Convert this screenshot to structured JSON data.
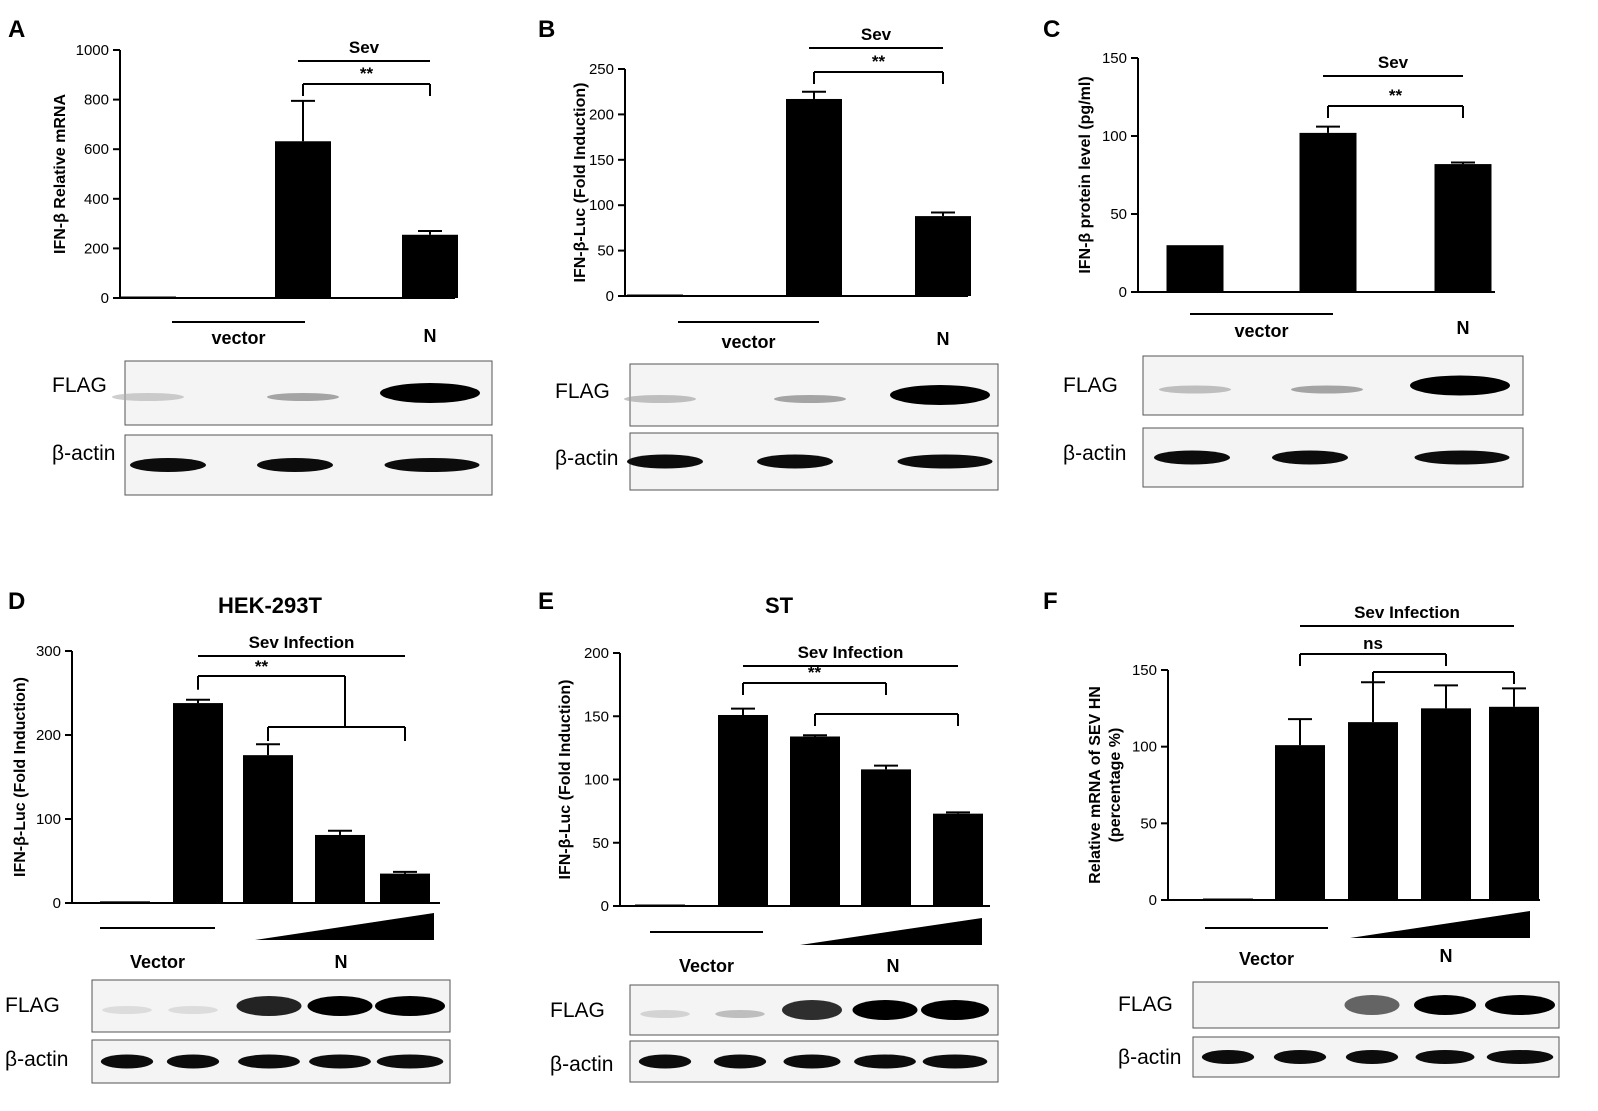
{
  "panels": [
    {
      "letter": "A",
      "chart_data": {
        "type": "bar",
        "ylabel": "IFN-β Relative mRNA",
        "ylim": [
          0,
          1000
        ],
        "yticks": [
          0,
          200,
          400,
          600,
          800,
          1000
        ],
        "values": [
          5,
          632,
          255
        ],
        "errors": [
          0,
          163,
          15
        ],
        "groups": [
          {
            "label": "vector",
            "bars": [
              0,
              1
            ],
            "type": "line"
          },
          {
            "label": "N",
            "bars": [
              2
            ],
            "type": "text"
          }
        ],
        "treatment": {
          "label": "Sev",
          "from": 1,
          "to": 2
        },
        "significance": [
          {
            "label": "**",
            "from": 1,
            "to": 2
          }
        ]
      },
      "blots": [
        "FLAG",
        "β-actin"
      ]
    },
    {
      "letter": "B",
      "chart_data": {
        "type": "bar",
        "ylabel": "IFN-β-Luc (Fold Induction)",
        "ylim": [
          0,
          250
        ],
        "yticks": [
          0,
          50,
          100,
          150,
          200,
          250
        ],
        "values": [
          1,
          217,
          88
        ],
        "errors": [
          0,
          8,
          4
        ],
        "groups": [
          {
            "label": "vector",
            "bars": [
              0,
              1
            ],
            "type": "line"
          },
          {
            "label": "N",
            "bars": [
              2
            ],
            "type": "text"
          }
        ],
        "treatment": {
          "label": "Sev",
          "from": 1,
          "to": 2
        },
        "significance": [
          {
            "label": "**",
            "from": 1,
            "to": 2
          }
        ]
      },
      "blots": [
        "FLAG",
        "β-actin"
      ]
    },
    {
      "letter": "C",
      "chart_data": {
        "type": "bar",
        "ylabel": "IFN-β protein level (pg/ml)",
        "ylim": [
          0,
          150
        ],
        "yticks": [
          0,
          50,
          100,
          150
        ],
        "values": [
          30,
          102,
          82
        ],
        "errors": [
          0,
          4,
          1
        ],
        "groups": [
          {
            "label": "vector",
            "bars": [
              0,
              1
            ],
            "type": "line"
          },
          {
            "label": "N",
            "bars": [
              2
            ],
            "type": "text"
          }
        ],
        "treatment": {
          "label": "Sev",
          "from": 1,
          "to": 2
        },
        "significance": [
          {
            "label": "**",
            "from": 1,
            "to": 2
          }
        ]
      },
      "blots": [
        "FLAG",
        "β-actin"
      ]
    },
    {
      "letter": "D",
      "title": "HEK-293T",
      "chart_data": {
        "type": "bar",
        "ylabel": "IFN-β-Luc (Fold Induction)",
        "ylim": [
          0,
          300
        ],
        "yticks": [
          0,
          100,
          200,
          300
        ],
        "values": [
          2,
          238,
          176,
          81,
          35
        ],
        "errors": [
          0,
          4,
          13,
          5,
          2
        ],
        "groups": [
          {
            "label": "Vector",
            "bars": [
              0,
              1
            ],
            "type": "line"
          },
          {
            "label": "N",
            "bars": [
              2,
              4
            ],
            "type": "wedge"
          }
        ],
        "treatment": {
          "label": "Sev Infection",
          "from": 1,
          "to": 4
        },
        "significance": [
          {
            "label": "**",
            "from": 1,
            "to": 3,
            "type": "fork",
            "fork_from": 2,
            "fork_to": 4
          }
        ]
      },
      "blots": [
        "FLAG",
        "β-actin"
      ]
    },
    {
      "letter": "E",
      "title": "ST",
      "chart_data": {
        "type": "bar",
        "ylabel": "IFN-β-Luc (Fold Induction)",
        "ylim": [
          0,
          200
        ],
        "yticks": [
          0,
          50,
          100,
          150,
          200
        ],
        "values": [
          1,
          151,
          134,
          108,
          73
        ],
        "errors": [
          0,
          5,
          1,
          3,
          1
        ],
        "groups": [
          {
            "label": "Vector",
            "bars": [
              0,
              1
            ],
            "type": "line"
          },
          {
            "label": "N",
            "bars": [
              2,
              4
            ],
            "type": "wedge"
          }
        ],
        "treatment": {
          "label": "Sev Infection",
          "from": 1,
          "to": 4
        },
        "significance": [
          {
            "label": "**",
            "from": 1,
            "to": 3
          },
          {
            "label": "",
            "from": 2,
            "to": 4
          }
        ]
      },
      "blots": [
        "FLAG",
        "β-actin"
      ]
    },
    {
      "letter": "F",
      "chart_data": {
        "type": "bar",
        "ylabel": "Relative mRNA of SEV HN",
        "ylabel2": "(percentage %)",
        "ylim": [
          0,
          150
        ],
        "yticks": [
          0,
          50,
          100,
          150
        ],
        "values": [
          0,
          101,
          116,
          125,
          126
        ],
        "errors": [
          0,
          17,
          26,
          15,
          12
        ],
        "groups": [
          {
            "label": "Vector",
            "bars": [
              0,
              1
            ],
            "type": "line"
          },
          {
            "label": "N",
            "bars": [
              2,
              4
            ],
            "type": "wedge"
          }
        ],
        "treatment": {
          "label": "Sev Infection",
          "from": 1,
          "to": 4
        },
        "significance": [
          {
            "label": "ns",
            "from": 1,
            "to": 3
          },
          {
            "label": "",
            "from": 2,
            "to": 4
          }
        ]
      },
      "blots": [
        "FLAG",
        "β-actin"
      ]
    }
  ]
}
